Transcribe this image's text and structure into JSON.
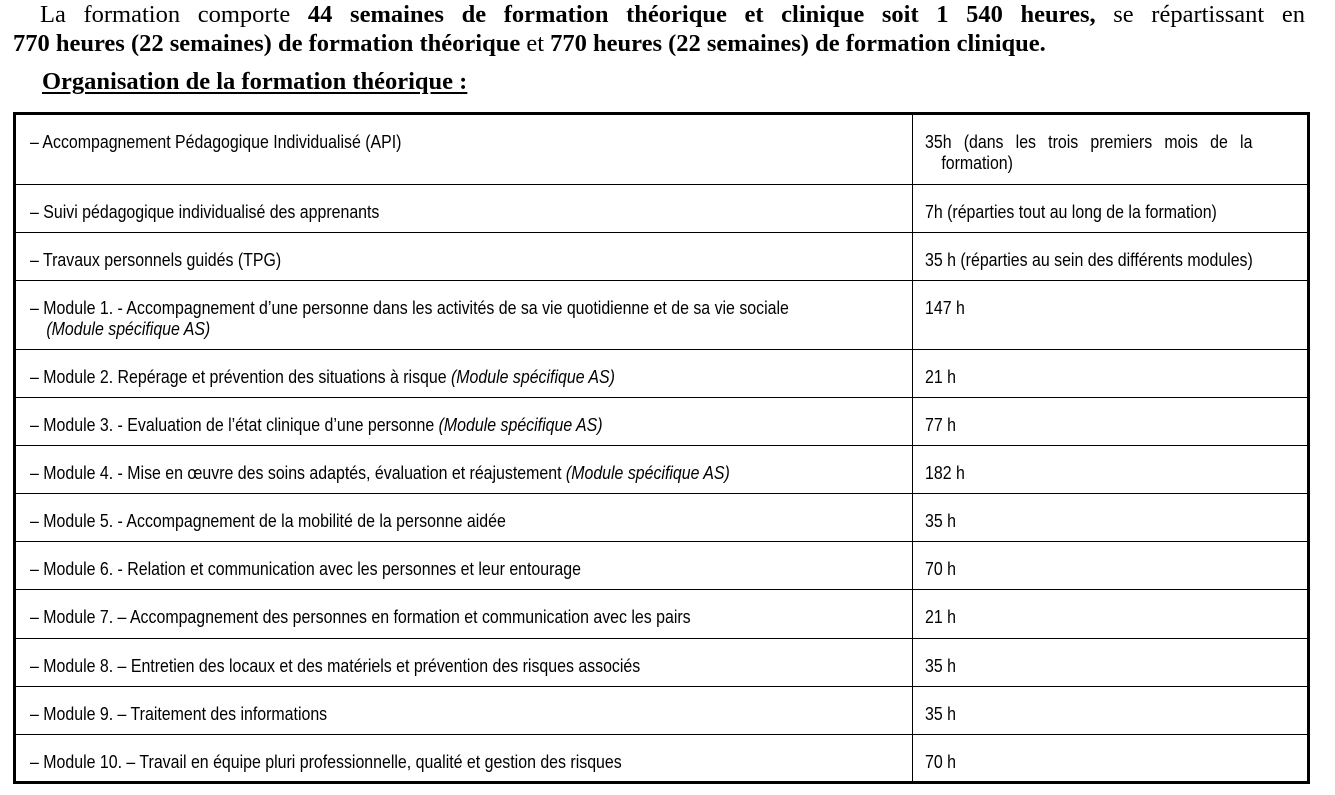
{
  "intro": {
    "line1_a": "La formation comporte ",
    "line1_b": "44 semaines de formation théorique et clinique soit 1 540 heures,",
    "line1_c": " se répartissant en",
    "line2_a": "770 heures (22 semaines) de formation théorique",
    "line2_b": " et ",
    "line2_c": "770 heures (22 semaines) de formation clinique."
  },
  "heading": "Organisation de la formation théorique :",
  "rows": [
    {
      "label": "– Accompagnement Pédagogique Individualisé (API)",
      "italic": "",
      "value": "35h (dans les trois premiers mois de la",
      "value2": "formation)"
    },
    {
      "label": "– Suivi pédagogique individualisé des apprenants",
      "italic": "",
      "value": "7h (réparties tout au long de la formation)"
    },
    {
      "label": "– Travaux personnels guidés (TPG)",
      "italic": "",
      "value": "35 h (réparties au sein des différents modules)"
    },
    {
      "label": "– Module 1. - Accompagnement d’une personne dans les activités de sa vie quotidienne et de sa vie sociale",
      "italic2": "(Module spécifique AS)",
      "value": "147 h"
    },
    {
      "label": "– Module 2. Repérage et prévention des situations à risque ",
      "italic": "(Module spécifique AS)",
      "value": "21 h"
    },
    {
      "label": "– Module 3. - Evaluation de l’état clinique d’une personne ",
      "italic": "(Module spécifique AS)",
      "value": "77 h"
    },
    {
      "label": "– Module 4. - Mise en œuvre des soins adaptés, évaluation et réajustement ",
      "italic": "(Module spécifique AS)",
      "value": "182 h"
    },
    {
      "label": "– Module 5. - Accompagnement de la mobilité de la personne aidée",
      "italic": "",
      "value": "35 h"
    },
    {
      "label": "– Module 6. - Relation et communication avec les personnes et leur entourage",
      "italic": "",
      "value": "70 h"
    },
    {
      "label": "– Module 7. – Accompagnement des personnes en formation et communication avec les pairs",
      "italic": "",
      "value": "21 h"
    },
    {
      "label": "– Module 8. – Entretien des locaux et des matériels et prévention des risques associés",
      "italic": "",
      "value": "35 h"
    },
    {
      "label": "– Module 9. – Traitement des informations",
      "italic": "",
      "value": "35 h"
    },
    {
      "label": "– Module 10. – Travail en équipe pluri professionnelle, qualité et gestion des risques",
      "italic": "",
      "value": "70 h"
    }
  ]
}
